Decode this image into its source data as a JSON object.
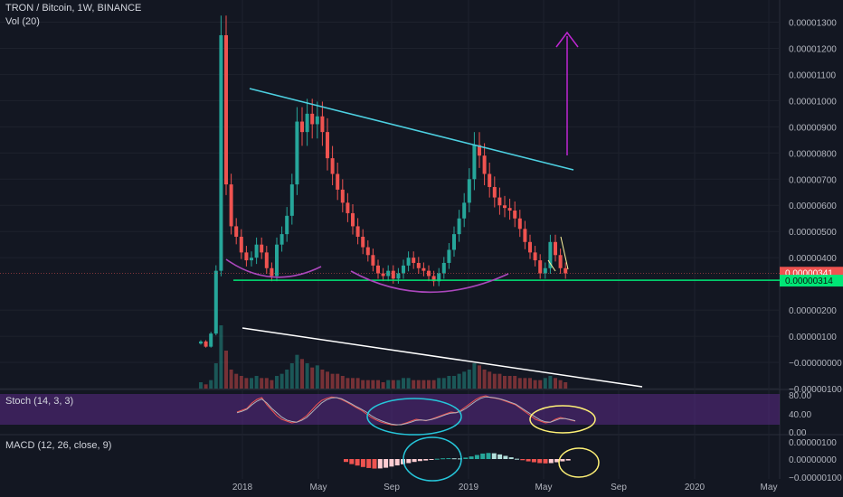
{
  "header": {
    "symbol": "TRON / Bitcoin, 1W, BINANCE",
    "volume_label": "Vol (20)"
  },
  "panes": {
    "stoch_label": "Stoch (14, 3, 3)",
    "macd_label": "MACD (12, 26, close, 9)"
  },
  "colors": {
    "background": "#131722",
    "up_candle": "#26a69a",
    "down_candle": "#ef5350",
    "trendline_cyan": "#4dd0e1",
    "support_green": "#00e676",
    "cup_purple": "#ab47bc",
    "arrow_purple": "#c026d3",
    "stoch_band": "#5b2a86",
    "white_line": "#ffffff",
    "yellow_note": "#fff59d"
  },
  "chart_data": [
    {
      "type": "candlestick",
      "title": "TRON / Bitcoin, 1W, BINANCE",
      "x_ticks": [
        "2018",
        "May",
        "Sep",
        "2019",
        "May",
        "Sep",
        "2020",
        "May"
      ],
      "y_ticks": [
        "0.00001300",
        "0.00001200",
        "0.00001100",
        "0.00001000",
        "0.00000900",
        "0.00000800",
        "0.00000700",
        "0.00000600",
        "0.00000500",
        "0.00000400",
        "0.00000200",
        "0.00000100",
        "−0.00000000",
        "−0.00000100"
      ],
      "ylim": [
        -1e-06,
        1.35e-05
      ],
      "last_price_tag": "0.00000341",
      "support_tag": "0.00000314",
      "support_level": 3.14e-06,
      "price_series": [
        8e-07,
        6e-07,
        1.1e-06,
        3.5e-06,
        1.25e-05,
        6.8e-06,
        5.2e-06,
        4.8e-06,
        4.2e-06,
        3.9e-06,
        4e-06,
        4.5e-06,
        4.2e-06,
        3.6e-06,
        3.3e-06,
        4.5e-06,
        4.9e-06,
        5.6e-06,
        6.8e-06,
        9.2e-06,
        8.8e-06,
        9.5e-06,
        9.1e-06,
        9.4e-06,
        8.8e-06,
        7.8e-06,
        7.2e-06,
        6.6e-06,
        6.1e-06,
        5.7e-06,
        5.2e-06,
        4.8e-06,
        4.4e-06,
        4.1e-06,
        3.7e-06,
        3.4e-06,
        3.3e-06,
        3.5e-06,
        3.2e-06,
        3.4e-06,
        3.7e-06,
        4e-06,
        3.8e-06,
        3.6e-06,
        3.5e-06,
        3.3e-06,
        3.1e-06,
        3.4e-06,
        3.8e-06,
        4.3e-06,
        4.9e-06,
        5.5e-06,
        6.1e-06,
        7e-06,
        8.3e-06,
        7.9e-06,
        7.2e-06,
        6.7e-06,
        6.3e-06,
        6e-06,
        5.9e-06,
        5.8e-06,
        5.5e-06,
        5.1e-06,
        4.6e-06,
        4.2e-06,
        3.9e-06,
        3.4e-06,
        3.6e-06,
        4.6e-06,
        4.1e-06,
        3.6e-06,
        3.4e-06
      ],
      "volume": [
        3,
        2,
        4,
        12,
        30,
        18,
        9,
        7,
        6,
        5,
        5,
        6,
        5,
        5,
        4,
        6,
        7,
        9,
        12,
        16,
        14,
        12,
        10,
        11,
        9,
        8,
        7,
        7,
        6,
        5,
        5,
        5,
        4,
        4,
        4,
        4,
        3,
        4,
        4,
        4,
        5,
        5,
        4,
        4,
        4,
        4,
        4,
        5,
        5,
        6,
        6,
        7,
        8,
        9,
        12,
        11,
        9,
        8,
        7,
        7,
        6,
        6,
        6,
        5,
        5,
        5,
        4,
        4,
        5,
        6,
        5,
        4,
        3
      ],
      "annotations": {
        "descending_resistance": [
          [
            1.04e-05,
            7.3e-06
          ]
        ],
        "target_arrow_up": true,
        "cup_shapes": 2,
        "declining_white_line": true
      }
    },
    {
      "type": "line",
      "title": "Stoch (14, 3, 3)",
      "y_ticks": [
        "80.00",
        "40.00",
        "0.00"
      ],
      "ylim": [
        0,
        100
      ],
      "series": [
        {
          "values": [
            50,
            55,
            60,
            75,
            85,
            90,
            70,
            55,
            40,
            30,
            25,
            20,
            22,
            30,
            40,
            55,
            70,
            82,
            88,
            92,
            90,
            85,
            78,
            70,
            62,
            55,
            45,
            35,
            28,
            22,
            18,
            15,
            14,
            16,
            20,
            25,
            30,
            28,
            26,
            30,
            35,
            40,
            45,
            50,
            48,
            55,
            65,
            75,
            85,
            92,
            95,
            90,
            88,
            85,
            80,
            75,
            70,
            60,
            50,
            40,
            30,
            25,
            20,
            22,
            30,
            35,
            32,
            28,
            25
          ]
        },
        {
          "values": [
            48,
            52,
            58,
            70,
            80,
            86,
            75,
            60,
            48,
            36,
            28,
            24,
            22,
            27,
            35,
            48,
            62,
            75,
            84,
            89,
            90,
            87,
            80,
            73,
            65,
            58,
            50,
            40,
            32,
            26,
            21,
            17,
            15,
            15,
            18,
            22,
            27,
            28,
            27,
            29,
            33,
            38,
            43,
            47,
            48,
            52,
            60,
            70,
            80,
            88,
            92,
            91,
            89,
            86,
            82,
            77,
            72,
            63,
            54,
            45,
            36,
            28,
            23,
            22,
            27,
            32,
            32,
            29,
            26
          ]
        }
      ]
    },
    {
      "type": "bar",
      "title": "MACD (12, 26, close, 9)",
      "y_ticks": [
        "0.00000100",
        "0.00000000",
        "−0.00000100"
      ],
      "ylim": [
        -1.2e-06,
        1.2e-06
      ],
      "histogram": [
        -0.2,
        -0.35,
        -0.45,
        -0.55,
        -0.62,
        -0.66,
        -0.65,
        -0.6,
        -0.52,
        -0.44,
        -0.36,
        -0.28,
        -0.2,
        -0.14,
        -0.1,
        -0.05,
        0.02,
        0.05,
        0.06,
        0.05,
        0.04,
        0.1,
        0.18,
        0.28,
        0.38,
        0.42,
        0.4,
        0.32,
        0.22,
        0.12,
        0.02,
        -0.08,
        -0.16,
        -0.22,
        -0.28,
        -0.3,
        -0.28,
        -0.22,
        -0.16,
        -0.1
      ]
    }
  ]
}
